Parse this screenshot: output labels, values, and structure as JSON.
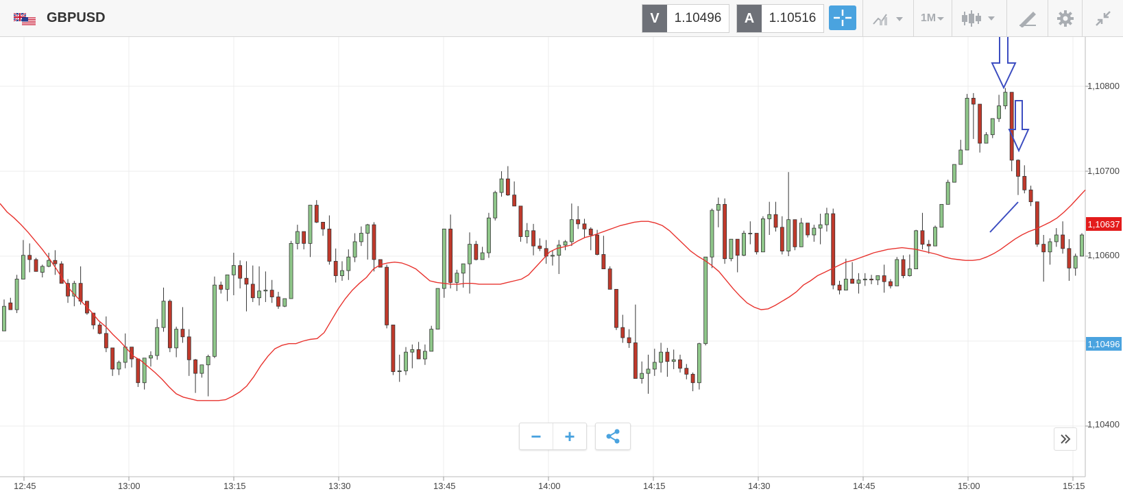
{
  "header": {
    "symbol": "GBPUSD",
    "sell_letter": "V",
    "sell_price": "1.10496",
    "buy_letter": "A",
    "buy_price": "1.10516",
    "timeframe": "1M",
    "icons": [
      "uk-us-flag-icon",
      "crosshair-icon",
      "indicators-icon",
      "chart-type-icon",
      "drawing-tools-icon",
      "settings-icon",
      "collapse-icon"
    ]
  },
  "controls": {
    "zoom_out": "−",
    "zoom_in": "+",
    "share_icon": "share-icon",
    "scroll_icon": "double-chevron-right-icon"
  },
  "chart_data": {
    "type": "candlestick",
    "title": "GBPUSD",
    "ylim": [
      1.1033,
      1.1086
    ],
    "y_ticks": [
      "1,10800",
      "1,10700",
      "1,10600",
      "1,10400"
    ],
    "x_ticks": [
      "12:45",
      "13:00",
      "13:15",
      "13:30",
      "13:45",
      "14:00",
      "14:15",
      "14:30",
      "14:45",
      "15:00",
      "15:15"
    ],
    "current_price_tag": "1,10637",
    "bid_price_tag": "1,10496",
    "colors": {
      "up": "#8fc78a",
      "down": "#c0392b",
      "ma": "#e8322d",
      "annotation": "#3b4cc0"
    },
    "grid": true,
    "candles_ohlc": [
      [
        1.10512,
        1.10549,
        1.10519,
        1.10541
      ],
      [
        1.10545,
        1.10551,
        1.10538,
        1.10537
      ],
      [
        1.10537,
        1.10578,
        1.10533,
        1.10573
      ],
      [
        1.10573,
        1.10619,
        1.10573,
        1.10601
      ],
      [
        1.10601,
        1.10615,
        1.10581,
        1.10596
      ],
      [
        1.10596,
        1.10598,
        1.10584,
        1.10582
      ],
      [
        1.10581,
        1.1059,
        1.10575,
        1.10588
      ],
      [
        1.10588,
        1.10604,
        1.10587,
        1.10595
      ],
      [
        1.10595,
        1.10607,
        1.10578,
        1.10591
      ],
      [
        1.10591,
        1.10594,
        1.10577,
        1.10568
      ],
      [
        1.10568,
        1.10573,
        1.10545,
        1.10553
      ],
      [
        1.10553,
        1.10571,
        1.10541,
        1.10568
      ],
      [
        1.10568,
        1.10588,
        1.10543,
        1.10547
      ],
      [
        1.10547,
        1.10537,
        1.10531,
        1.10533
      ],
      [
        1.10533,
        1.10526,
        1.10514,
        1.10519
      ],
      [
        1.10519,
        1.10522,
        1.10508,
        1.10509
      ],
      [
        1.10509,
        1.10529,
        1.10487,
        1.10492
      ],
      [
        1.10492,
        1.10484,
        1.10459,
        1.10467
      ],
      [
        1.10467,
        1.10477,
        1.1046,
        1.10475
      ],
      [
        1.10475,
        1.10509,
        1.10468,
        1.10493
      ],
      [
        1.10493,
        1.10492,
        1.10469,
        1.10479
      ],
      [
        1.10479,
        1.10476,
        1.10446,
        1.10451
      ],
      [
        1.10451,
        1.10463,
        1.10443,
        1.1048
      ],
      [
        1.1048,
        1.10488,
        1.1047,
        1.10483
      ],
      [
        1.10483,
        1.10526,
        1.10478,
        1.10516
      ],
      [
        1.10516,
        1.10563,
        1.10511,
        1.10547
      ],
      [
        1.10547,
        1.10549,
        1.10487,
        1.10492
      ],
      [
        1.10492,
        1.10517,
        1.10481,
        1.10514
      ],
      [
        1.10514,
        1.1054,
        1.10498,
        1.10505
      ],
      [
        1.10505,
        1.10514,
        1.10459,
        1.10478
      ],
      [
        1.10478,
        1.10479,
        1.10439,
        1.10462
      ],
      [
        1.10462,
        1.10467,
        1.10457,
        1.10472
      ],
      [
        1.10472,
        1.10484,
        1.10435,
        1.10482
      ],
      [
        1.10482,
        1.10576,
        1.1048,
        1.10566
      ],
      [
        1.10566,
        1.1057,
        1.10556,
        1.10561
      ],
      [
        1.10561,
        1.10578,
        1.10547,
        1.10578
      ],
      [
        1.10578,
        1.10604,
        1.10554,
        1.10589
      ],
      [
        1.10589,
        1.10595,
        1.10562,
        1.10574
      ],
      [
        1.10574,
        1.10594,
        1.10535,
        1.10567
      ],
      [
        1.10567,
        1.10589,
        1.10546,
        1.10551
      ],
      [
        1.10551,
        1.10588,
        1.10542,
        1.10559
      ],
      [
        1.10559,
        1.10582,
        1.10546,
        1.1056
      ],
      [
        1.1056,
        1.10572,
        1.10545,
        1.10552
      ],
      [
        1.10552,
        1.10558,
        1.10538,
        1.10541
      ],
      [
        1.10541,
        1.10549,
        1.1054,
        1.1055
      ],
      [
        1.1055,
        1.10618,
        1.10551,
        1.10615
      ],
      [
        1.10615,
        1.10637,
        1.10608,
        1.10629
      ],
      [
        1.10629,
        1.10624,
        1.10608,
        1.10615
      ],
      [
        1.10615,
        1.1066,
        1.10599,
        1.1066
      ],
      [
        1.1066,
        1.10666,
        1.10639,
        1.1064
      ],
      [
        1.1064,
        1.1064,
        1.10624,
        1.10632
      ],
      [
        1.10632,
        1.10648,
        1.1059,
        1.10594
      ],
      [
        1.10594,
        1.10609,
        1.10569,
        1.10577
      ],
      [
        1.10577,
        1.10594,
        1.10571,
        1.10583
      ],
      [
        1.10583,
        1.10608,
        1.10572,
        1.10599
      ],
      [
        1.10599,
        1.10627,
        1.10593,
        1.10617
      ],
      [
        1.10617,
        1.10635,
        1.10612,
        1.10627
      ],
      [
        1.10627,
        1.10638,
        1.10596,
        1.10637
      ],
      [
        1.10637,
        1.1064,
        1.10582,
        1.10596
      ],
      [
        1.10596,
        1.10591,
        1.10588,
        1.10587
      ],
      [
        1.10587,
        1.1059,
        1.10515,
        1.10519
      ],
      [
        1.10519,
        1.10508,
        1.1046,
        1.10464
      ],
      [
        1.10464,
        1.10484,
        1.10452,
        1.10465
      ],
      [
        1.10465,
        1.10493,
        1.1046,
        1.10487
      ],
      [
        1.10487,
        1.10496,
        1.10468,
        1.1049
      ],
      [
        1.1049,
        1.10499,
        1.10488,
        1.10479
      ],
      [
        1.10479,
        1.10496,
        1.10472,
        1.10488
      ],
      [
        1.10488,
        1.10518,
        1.10492,
        1.10514
      ],
      [
        1.10514,
        1.10562,
        1.10521,
        1.10562
      ],
      [
        1.10562,
        1.10632,
        1.10551,
        1.10632
      ],
      [
        1.10632,
        1.10649,
        1.10562,
        1.10569
      ],
      [
        1.10569,
        1.10584,
        1.10559,
        1.1058
      ],
      [
        1.1058,
        1.10591,
        1.10563,
        1.10591
      ],
      [
        1.10591,
        1.10628,
        1.10556,
        1.10614
      ],
      [
        1.10614,
        1.10618,
        1.10595,
        1.10596
      ],
      [
        1.10596,
        1.10611,
        1.106,
        1.10604
      ],
      [
        1.10604,
        1.10651,
        1.10598,
        1.10645
      ],
      [
        1.10645,
        1.10677,
        1.10642,
        1.10675
      ],
      [
        1.10675,
        1.107,
        1.1067,
        1.10691
      ],
      [
        1.10691,
        1.10706,
        1.10671,
        1.10672
      ],
      [
        1.10672,
        1.10688,
        1.10659,
        1.10659
      ],
      [
        1.10659,
        1.10651,
        1.10617,
        1.10623
      ],
      [
        1.10623,
        1.10639,
        1.10615,
        1.1063
      ],
      [
        1.1063,
        1.10638,
        1.10601,
        1.10612
      ],
      [
        1.10612,
        1.10621,
        1.10606,
        1.10609
      ],
      [
        1.10609,
        1.10619,
        1.10591,
        1.106
      ],
      [
        1.106,
        1.10607,
        1.10589,
        1.10601
      ],
      [
        1.10601,
        1.10619,
        1.10579,
        1.10613
      ],
      [
        1.10613,
        1.10619,
        1.10607,
        1.10617
      ],
      [
        1.10617,
        1.10662,
        1.10612,
        1.10643
      ],
      [
        1.10643,
        1.10659,
        1.10632,
        1.10638
      ],
      [
        1.10638,
        1.10644,
        1.10622,
        1.10632
      ],
      [
        1.10632,
        1.10634,
        1.10607,
        1.10625
      ],
      [
        1.10625,
        1.10631,
        1.10601,
        1.10602
      ],
      [
        1.10602,
        1.10624,
        1.10596,
        1.10585
      ],
      [
        1.10585,
        1.10588,
        1.10566,
        1.10561
      ],
      [
        1.10561,
        1.10558,
        1.10513,
        1.10516
      ],
      [
        1.10516,
        1.10531,
        1.10498,
        1.10504
      ],
      [
        1.10504,
        1.10514,
        1.10492,
        1.10498
      ],
      [
        1.10498,
        1.10543,
        1.10456,
        1.10456
      ],
      [
        1.10456,
        1.10476,
        1.1045,
        1.10462
      ],
      [
        1.10462,
        1.10484,
        1.10438,
        1.10467
      ],
      [
        1.10467,
        1.10491,
        1.10459,
        1.10475
      ],
      [
        1.10475,
        1.10498,
        1.10463,
        1.10487
      ],
      [
        1.10487,
        1.10492,
        1.10458,
        1.10476
      ],
      [
        1.10476,
        1.1049,
        1.10467,
        1.10478
      ],
      [
        1.10478,
        1.10484,
        1.10463,
        1.10468
      ],
      [
        1.10468,
        1.10473,
        1.10455,
        1.10461
      ],
      [
        1.10461,
        1.10463,
        1.10441,
        1.10451
      ],
      [
        1.10451,
        1.10498,
        1.10443,
        1.10497
      ],
      [
        1.10497,
        1.10599,
        1.10495,
        1.10599
      ],
      [
        1.10599,
        1.10656,
        1.10586,
        1.10654
      ],
      [
        1.10654,
        1.10669,
        1.10634,
        1.10661
      ],
      [
        1.10661,
        1.10668,
        1.10591,
        1.10597
      ],
      [
        1.10597,
        1.10618,
        1.10594,
        1.1062
      ],
      [
        1.1062,
        1.10607,
        1.10581,
        1.10601
      ],
      [
        1.10601,
        1.1063,
        1.106,
        1.10627
      ],
      [
        1.10627,
        1.10641,
        1.10614,
        1.10627
      ],
      [
        1.10627,
        1.10622,
        1.10602,
        1.10605
      ],
      [
        1.10605,
        1.10647,
        1.10605,
        1.10644
      ],
      [
        1.10644,
        1.10664,
        1.10625,
        1.10649
      ],
      [
        1.10649,
        1.10664,
        1.10629,
        1.10634
      ],
      [
        1.10634,
        1.10647,
        1.10602,
        1.10606
      ],
      [
        1.10606,
        1.10699,
        1.106,
        1.10643
      ],
      [
        1.10643,
        1.1064,
        1.10607,
        1.10611
      ],
      [
        1.10611,
        1.10645,
        1.10611,
        1.10639
      ],
      [
        1.10639,
        1.10627,
        1.10622,
        1.10625
      ],
      [
        1.10625,
        1.10637,
        1.10617,
        1.10633
      ],
      [
        1.10633,
        1.1065,
        1.10614,
        1.10637
      ],
      [
        1.10637,
        1.10657,
        1.10629,
        1.1065
      ],
      [
        1.1065,
        1.10656,
        1.10561,
        1.10566
      ],
      [
        1.10566,
        1.10571,
        1.10555,
        1.1056
      ],
      [
        1.1056,
        1.10597,
        1.10562,
        1.10573
      ],
      [
        1.10573,
        1.10593,
        1.10571,
        1.10568
      ],
      [
        1.10568,
        1.1058,
        1.10556,
        1.10572
      ],
      [
        1.10572,
        1.1058,
        1.10565,
        1.10573
      ],
      [
        1.10573,
        1.10578,
        1.10567,
        1.10572
      ],
      [
        1.10572,
        1.10574,
        1.10566,
        1.10577
      ],
      [
        1.10577,
        1.1059,
        1.10557,
        1.1057
      ],
      [
        1.1057,
        1.10573,
        1.10562,
        1.10565
      ],
      [
        1.10565,
        1.10599,
        1.10572,
        1.10596
      ],
      [
        1.10596,
        1.10601,
        1.10574,
        1.10577
      ],
      [
        1.10577,
        1.10602,
        1.10576,
        1.10585
      ],
      [
        1.10585,
        1.10631,
        1.10596,
        1.1063
      ],
      [
        1.1063,
        1.10651,
        1.10608,
        1.10614
      ],
      [
        1.10614,
        1.10619,
        1.10603,
        1.10612
      ],
      [
        1.10612,
        1.10636,
        1.10612,
        1.10634
      ],
      [
        1.10634,
        1.10647,
        1.10637,
        1.10661
      ],
      [
        1.10661,
        1.1069,
        1.10661,
        1.10687
      ],
      [
        1.10687,
        1.10702,
        1.10691,
        1.10708
      ],
      [
        1.10708,
        1.10737,
        1.10713,
        1.10725
      ],
      [
        1.10725,
        1.10791,
        1.10727,
        1.10786
      ],
      [
        1.10786,
        1.10792,
        1.10738,
        1.10779
      ],
      [
        1.10779,
        1.10776,
        1.10722,
        1.10733
      ],
      [
        1.10733,
        1.10746,
        1.10733,
        1.10743
      ],
      [
        1.10743,
        1.1076,
        1.10739,
        1.10762
      ],
      [
        1.10762,
        1.1079,
        1.10758,
        1.10777
      ],
      [
        1.10777,
        1.10798,
        1.10773,
        1.10793
      ],
      [
        1.10793,
        1.1079,
        1.107,
        1.10713
      ],
      [
        1.10713,
        1.10714,
        1.10672,
        1.10694
      ],
      [
        1.10694,
        1.10707,
        1.10674,
        1.10678
      ],
      [
        1.10678,
        1.10683,
        1.10659,
        1.10664
      ],
      [
        1.10664,
        1.1066,
        1.10611,
        1.10614
      ],
      [
        1.10614,
        1.10625,
        1.1057,
        1.10605
      ],
      [
        1.10605,
        1.10621,
        1.1059,
        1.10617
      ],
      [
        1.10617,
        1.10633,
        1.10611,
        1.10625
      ],
      [
        1.10625,
        1.10641,
        1.10603,
        1.10609
      ],
      [
        1.10609,
        1.1062,
        1.10571,
        1.10586
      ],
      [
        1.10586,
        1.10603,
        1.10577,
        1.106
      ],
      [
        1.106,
        1.10627,
        1.10603,
        1.10625
      ]
    ],
    "ma_series": [
      1.10662,
      1.10652,
      1.10645,
      1.10637,
      1.10628,
      1.10618,
      1.10608,
      1.10597,
      1.10585,
      1.10572,
      1.1056,
      1.10551,
      1.10543,
      1.10534,
      1.10524,
      1.10517,
      1.10508,
      1.105,
      1.10491,
      1.10482,
      1.10477,
      1.1047,
      1.10463,
      1.10455,
      1.10446,
      1.10438,
      1.10434,
      1.10432,
      1.1043,
      1.1043,
      1.1043,
      1.1043,
      1.10431,
      1.10435,
      1.1044,
      1.10447,
      1.10458,
      1.10471,
      1.10482,
      1.10491,
      1.10495,
      1.10497,
      1.10497,
      1.105,
      1.10502,
      1.10503,
      1.1051,
      1.10524,
      1.10538,
      1.1055,
      1.1056,
      1.10568,
      1.10575,
      1.10585,
      1.1059,
      1.10592,
      1.10593,
      1.10592,
      1.10589,
      1.10585,
      1.10578,
      1.10571,
      1.10569,
      1.10568,
      1.10567,
      1.10567,
      1.10568,
      1.10568,
      1.10567,
      1.10567,
      1.10567,
      1.10567,
      1.10569,
      1.10571,
      1.10573,
      1.10578,
      1.10587,
      1.10596,
      1.10605,
      1.10609,
      1.10611,
      1.10613,
      1.10618,
      1.10622,
      1.10624,
      1.10627,
      1.1063,
      1.10633,
      1.10636,
      1.10638,
      1.1064,
      1.10641,
      1.10641,
      1.10639,
      1.10636,
      1.1063,
      1.10622,
      1.10614,
      1.10606,
      1.106,
      1.10595,
      1.10589,
      1.10582,
      1.10572,
      1.10562,
      1.10553,
      1.10545,
      1.1054,
      1.10537,
      1.10538,
      1.10542,
      1.10547,
      1.10552,
      1.10558,
      1.10566,
      1.10571,
      1.10577,
      1.10581,
      1.10585,
      1.10589,
      1.10593,
      1.10595,
      1.10598,
      1.10601,
      1.10604,
      1.10606,
      1.10608,
      1.10609,
      1.1061,
      1.10609,
      1.10608,
      1.10606,
      1.10604,
      1.10602,
      1.10599,
      1.10597,
      1.10596,
      1.10595,
      1.10595,
      1.10596,
      1.10599,
      1.10603,
      1.10608,
      1.10614,
      1.1062,
      1.10625,
      1.10629,
      1.10632,
      1.10636,
      1.1064,
      1.10645,
      1.10652,
      1.1066,
      1.10669,
      1.10678
    ]
  }
}
